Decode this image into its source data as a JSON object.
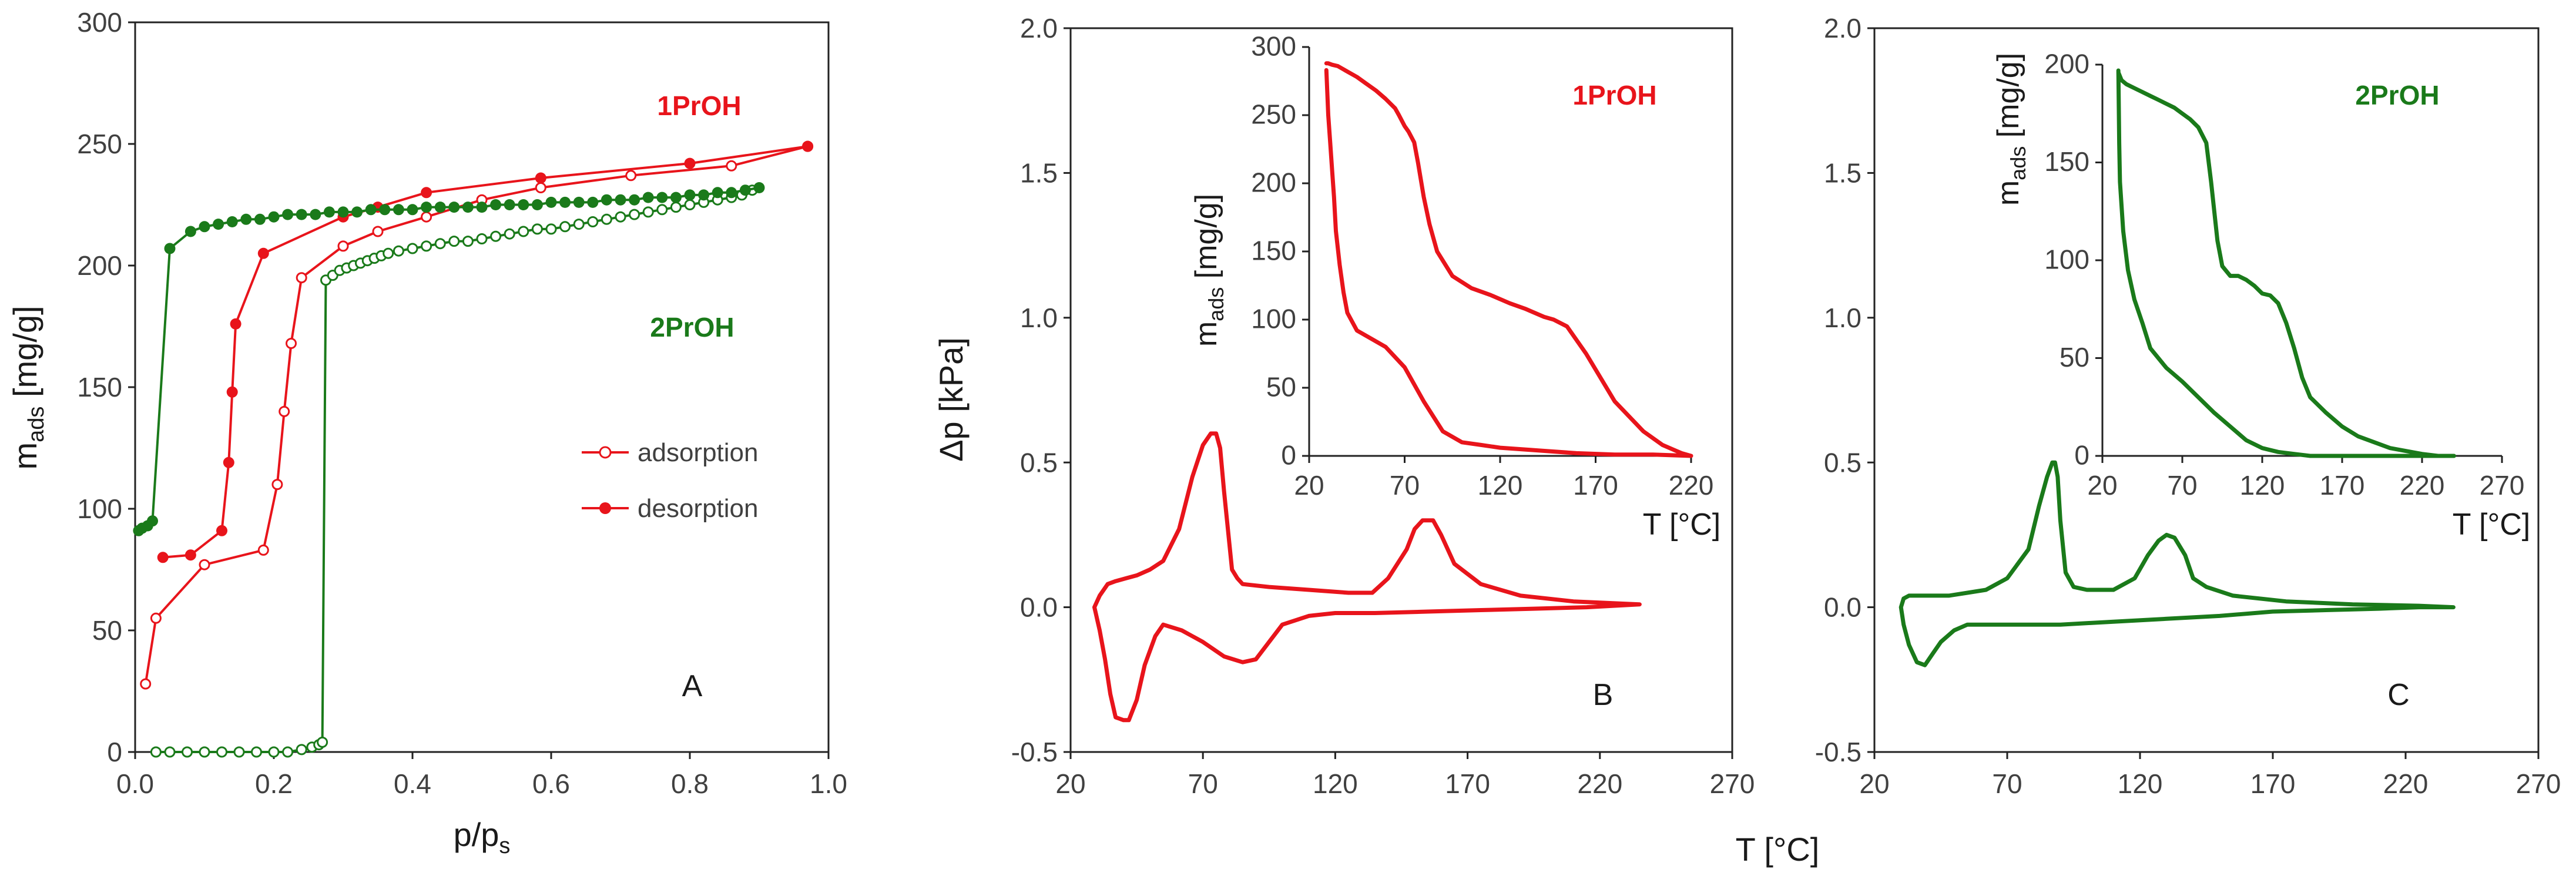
{
  "chart_data": [
    {
      "id": "A",
      "type": "scatter",
      "panel_label": "A",
      "xlabel": "p/p",
      "xlabel_sub": "s",
      "ylabel": "m",
      "ylabel_sub": "ads",
      "ylabel_unit": " [mg/g]",
      "xlim": [
        0,
        1.0
      ],
      "ylim": [
        0,
        300
      ],
      "xticks": [
        "0.0",
        "0.2",
        "0.4",
        "0.6",
        "0.8",
        "1.0"
      ],
      "yticks": [
        "0",
        "50",
        "100",
        "150",
        "200",
        "250",
        "300"
      ],
      "annotations": [
        {
          "text": "1PrOH",
          "color": "#e8141b",
          "x": 0.76,
          "y": 265
        },
        {
          "text": "2PrOH",
          "color": "#1a7a1a",
          "x": 0.76,
          "y": 174
        }
      ],
      "legend": {
        "position": "center-right",
        "entries": [
          {
            "label": "adsorption",
            "marker": "open",
            "color": "#e8141b"
          },
          {
            "label": "desorption",
            "marker": "filled",
            "color": "#e8141b"
          }
        ]
      },
      "series": [
        {
          "name": "1PrOH adsorption",
          "color": "#e8141b",
          "marker": "open",
          "x": [
            0.015,
            0.03,
            0.1,
            0.185,
            0.205,
            0.215,
            0.225,
            0.24,
            0.3,
            0.35,
            0.42,
            0.5,
            0.585,
            0.715,
            0.86,
            0.97
          ],
          "y": [
            28,
            55,
            77,
            83,
            110,
            140,
            168,
            195,
            208,
            214,
            220,
            227,
            232,
            237,
            241,
            249
          ]
        },
        {
          "name": "1PrOH desorption",
          "color": "#e8141b",
          "marker": "filled",
          "x": [
            0.97,
            0.8,
            0.585,
            0.42,
            0.35,
            0.3,
            0.185,
            0.145,
            0.14,
            0.135,
            0.125,
            0.08,
            0.04
          ],
          "y": [
            249,
            242,
            236,
            230,
            224,
            220,
            205,
            176,
            148,
            119,
            91,
            81,
            80
          ]
        },
        {
          "name": "2PrOH adsorption",
          "color": "#1a7a1a",
          "marker": "open",
          "x": [
            0.03,
            0.05,
            0.075,
            0.1,
            0.125,
            0.15,
            0.175,
            0.2,
            0.22,
            0.24,
            0.255,
            0.265,
            0.27,
            0.275,
            0.285,
            0.295,
            0.305,
            0.315,
            0.325,
            0.335,
            0.345,
            0.355,
            0.365,
            0.38,
            0.4,
            0.42,
            0.44,
            0.46,
            0.48,
            0.5,
            0.52,
            0.54,
            0.56,
            0.58,
            0.6,
            0.62,
            0.64,
            0.66,
            0.68,
            0.7,
            0.72,
            0.74,
            0.76,
            0.78,
            0.8,
            0.82,
            0.84,
            0.86,
            0.875,
            0.89
          ],
          "y": [
            0,
            0,
            0,
            0,
            0,
            0,
            0,
            0,
            0,
            1,
            2,
            3,
            4,
            194,
            196,
            198,
            199,
            200,
            201,
            202,
            203,
            204,
            205,
            206,
            207,
            208,
            209,
            210,
            210,
            211,
            212,
            213,
            214,
            215,
            215,
            216,
            217,
            218,
            219,
            220,
            221,
            222,
            223,
            224,
            225,
            226,
            227,
            228,
            229,
            231
          ]
        },
        {
          "name": "2PrOH desorption",
          "color": "#1a7a1a",
          "marker": "filled",
          "x": [
            0.9,
            0.88,
            0.86,
            0.84,
            0.82,
            0.8,
            0.78,
            0.76,
            0.74,
            0.72,
            0.7,
            0.68,
            0.66,
            0.64,
            0.62,
            0.6,
            0.58,
            0.56,
            0.54,
            0.52,
            0.5,
            0.48,
            0.46,
            0.44,
            0.42,
            0.4,
            0.38,
            0.36,
            0.34,
            0.32,
            0.3,
            0.28,
            0.26,
            0.24,
            0.22,
            0.2,
            0.18,
            0.16,
            0.14,
            0.12,
            0.1,
            0.08,
            0.05,
            0.025,
            0.018,
            0.01,
            0.005
          ],
          "y": [
            232,
            231,
            230,
            230,
            229,
            229,
            228,
            228,
            228,
            227,
            227,
            227,
            226,
            226,
            226,
            226,
            225,
            225,
            225,
            225,
            224,
            224,
            224,
            224,
            224,
            223,
            223,
            223,
            223,
            222,
            222,
            222,
            221,
            221,
            221,
            220,
            219,
            219,
            218,
            217,
            216,
            214,
            207,
            95,
            93,
            92,
            91
          ]
        }
      ]
    },
    {
      "id": "B",
      "type": "line",
      "panel_label": "B",
      "ylabel": "Δp [kPa]",
      "xlim": [
        20,
        270
      ],
      "ylim": [
        -0.5,
        2.0
      ],
      "xticks": [
        "20",
        "70",
        "120",
        "170",
        "220",
        "270"
      ],
      "yticks": [
        "-0.5",
        "0.0",
        "0.5",
        "1.0",
        "1.5",
        "2.0"
      ],
      "series": [
        {
          "name": "Δp 1PrOH",
          "color": "#e8141b",
          "x": [
            29,
            31,
            34,
            37,
            41,
            45,
            50,
            55,
            61,
            66,
            70,
            73,
            75,
            76.5,
            78,
            80,
            81,
            83,
            85,
            95,
            110,
            125,
            134,
            140,
            147,
            150,
            153,
            157,
            160,
            165,
            175,
            190,
            210,
            235,
            215,
            195,
            175,
            155,
            135,
            120,
            110,
            100,
            95,
            90,
            85,
            78,
            70,
            62,
            55,
            52,
            48,
            45,
            42,
            40,
            37,
            35,
            33,
            31,
            30,
            29.5,
            29
          ],
          "y": [
            0.0,
            0.04,
            0.08,
            0.09,
            0.1,
            0.11,
            0.13,
            0.16,
            0.27,
            0.45,
            0.56,
            0.6,
            0.6,
            0.55,
            0.4,
            0.22,
            0.13,
            0.1,
            0.08,
            0.07,
            0.06,
            0.05,
            0.05,
            0.1,
            0.2,
            0.27,
            0.3,
            0.3,
            0.25,
            0.15,
            0.08,
            0.04,
            0.02,
            0.01,
            0.0,
            -0.005,
            -0.01,
            -0.015,
            -0.02,
            -0.02,
            -0.03,
            -0.06,
            -0.12,
            -0.18,
            -0.19,
            -0.17,
            -0.12,
            -0.08,
            -0.06,
            -0.1,
            -0.2,
            -0.32,
            -0.39,
            -0.39,
            -0.38,
            -0.3,
            -0.18,
            -0.08,
            -0.04,
            -0.02,
            0.0
          ]
        }
      ],
      "inset": {
        "xlabel": "T [°C]",
        "ylabel": "m",
        "ylabel_sub": "ads",
        "ylabel_unit": " [mg/g]",
        "annotation": {
          "text": "1PrOH",
          "color": "#e8141b"
        },
        "xlim": [
          20,
          220
        ],
        "ylim": [
          0,
          300
        ],
        "xticks": [
          "20",
          "70",
          "120",
          "170",
          "220"
        ],
        "yticks": [
          "0",
          "50",
          "100",
          "150",
          "200",
          "250",
          "300"
        ],
        "x": [
          29,
          30,
          31,
          32,
          33,
          34,
          36,
          38,
          40,
          45,
          50,
          60,
          70,
          80,
          90,
          100,
          110,
          120,
          140,
          160,
          180,
          200,
          220,
          215,
          205,
          195,
          180,
          165,
          155,
          148,
          143,
          138,
          133,
          125,
          115,
          105,
          95,
          87,
          83,
          80,
          77,
          75,
          72,
          70,
          67,
          65,
          60,
          55,
          50,
          45,
          40,
          35,
          32,
          30,
          29
        ],
        "y": [
          283,
          250,
          230,
          210,
          190,
          165,
          140,
          120,
          105,
          92,
          88,
          80,
          65,
          40,
          18,
          10,
          8,
          6,
          4,
          2,
          1,
          1,
          0,
          2,
          8,
          18,
          40,
          75,
          95,
          100,
          102,
          105,
          108,
          112,
          118,
          123,
          132,
          150,
          170,
          190,
          215,
          230,
          238,
          242,
          250,
          255,
          262,
          268,
          273,
          278,
          282,
          286,
          287,
          288,
          288
        ]
      }
    },
    {
      "id": "C",
      "type": "line",
      "panel_label": "C",
      "xlim": [
        20,
        270
      ],
      "ylim": [
        -0.5,
        2.0
      ],
      "xticks": [
        "20",
        "70",
        "120",
        "170",
        "220",
        "270"
      ],
      "yticks": [
        "-0.5",
        "0.0",
        "0.5",
        "1.0",
        "1.5",
        "2.0"
      ],
      "series": [
        {
          "name": "Δp 2PrOH",
          "color": "#1a7a1a",
          "x": [
            30,
            31,
            33,
            37,
            42,
            48,
            55,
            62,
            70,
            78,
            82,
            85,
            87,
            88,
            89,
            90,
            92,
            95,
            100,
            110,
            118,
            123,
            127,
            130,
            133,
            137,
            140,
            145,
            155,
            175,
            200,
            225,
            238,
            225,
            210,
            190,
            170,
            150,
            130,
            110,
            90,
            75,
            65,
            55,
            50,
            45,
            42,
            39,
            36,
            33,
            31,
            30
          ],
          "y": [
            0.0,
            0.03,
            0.04,
            0.04,
            0.04,
            0.04,
            0.05,
            0.06,
            0.1,
            0.2,
            0.35,
            0.45,
            0.5,
            0.5,
            0.45,
            0.3,
            0.12,
            0.07,
            0.06,
            0.06,
            0.1,
            0.18,
            0.23,
            0.25,
            0.24,
            0.18,
            0.1,
            0.07,
            0.04,
            0.02,
            0.01,
            0.005,
            0.0,
            0.0,
            -0.005,
            -0.01,
            -0.015,
            -0.03,
            -0.04,
            -0.05,
            -0.06,
            -0.06,
            -0.06,
            -0.06,
            -0.08,
            -0.12,
            -0.16,
            -0.2,
            -0.19,
            -0.13,
            -0.06,
            0.0
          ]
        }
      ],
      "inset": {
        "xlabel": "T [°C]",
        "ylabel": "m",
        "ylabel_sub": "ads",
        "ylabel_unit": " [mg/g]",
        "annotation": {
          "text": "2PrOH",
          "color": "#1a7a1a"
        },
        "xlim": [
          20,
          270
        ],
        "ylim": [
          0,
          200
        ],
        "xticks": [
          "20",
          "70",
          "120",
          "170",
          "220",
          "270"
        ],
        "yticks": [
          "0",
          "50",
          "100",
          "150",
          "200"
        ],
        "x": [
          30,
          30.5,
          31,
          33,
          36,
          40,
          45,
          50,
          60,
          70,
          80,
          90,
          100,
          110,
          120,
          130,
          140,
          150,
          160,
          170,
          180,
          200,
          240,
          230,
          220,
          200,
          180,
          170,
          160,
          150,
          145,
          140,
          135,
          130,
          125,
          120,
          115,
          110,
          105,
          100,
          95,
          92,
          88,
          85,
          80,
          75,
          70,
          65,
          60,
          55,
          50,
          45,
          40,
          35,
          32,
          30
        ],
        "y": [
          197,
          160,
          140,
          115,
          95,
          80,
          68,
          55,
          45,
          38,
          30,
          22,
          15,
          8,
          4,
          2,
          1,
          0,
          0,
          0,
          0,
          0,
          0,
          0,
          1,
          4,
          10,
          15,
          22,
          30,
          40,
          55,
          68,
          78,
          82,
          83,
          87,
          90,
          92,
          92,
          97,
          110,
          140,
          160,
          168,
          172,
          175,
          178,
          180,
          182,
          184,
          186,
          188,
          190,
          192,
          196
        ]
      }
    }
  ],
  "shared_xlabel": "T [°C]"
}
